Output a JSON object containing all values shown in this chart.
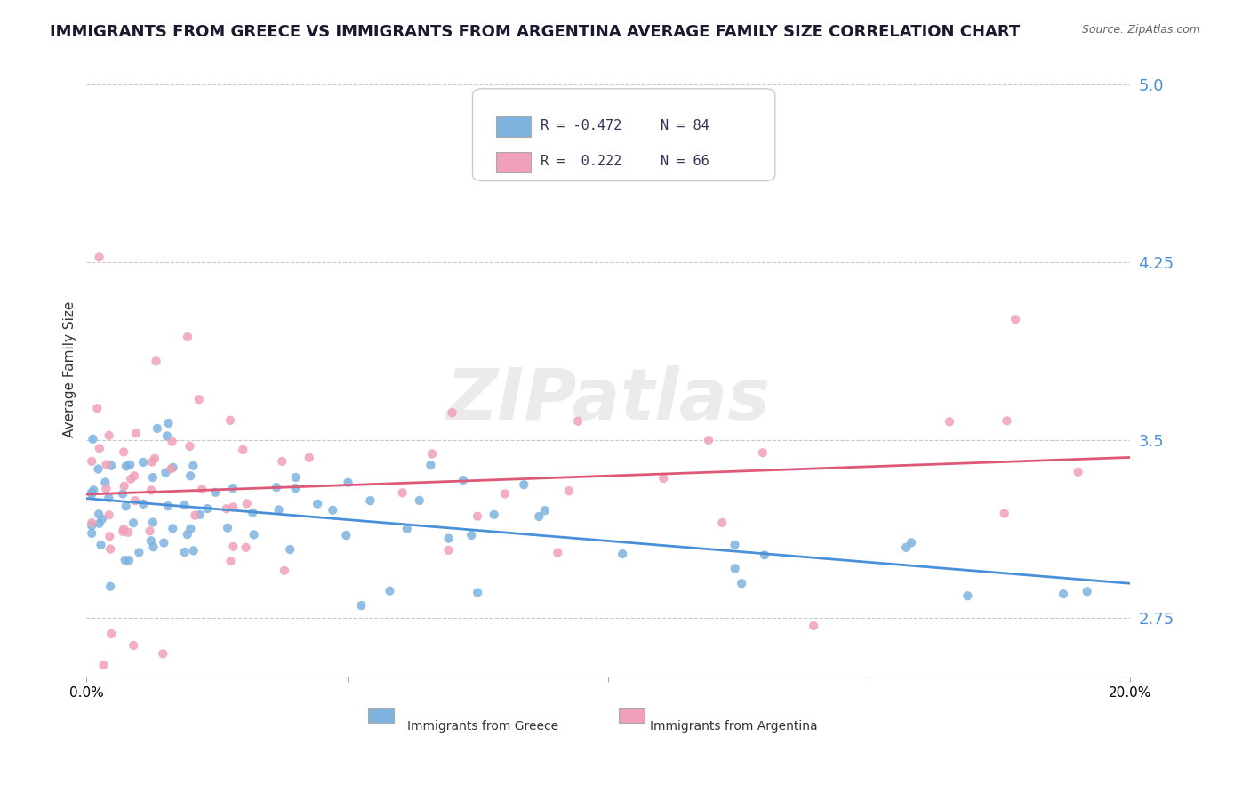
{
  "title": "IMMIGRANTS FROM GREECE VS IMMIGRANTS FROM ARGENTINA AVERAGE FAMILY SIZE CORRELATION CHART",
  "source_text": "Source: ZipAtlas.com",
  "ylabel": "Average Family Size",
  "watermark": "ZIPatlas",
  "xmin": 0.0,
  "xmax": 0.2,
  "ymin": 2.5,
  "ymax": 5.1,
  "yticks": [
    2.75,
    3.5,
    4.25,
    5.0
  ],
  "xticks": [
    0.0,
    0.05,
    0.1,
    0.15,
    0.2
  ],
  "xticklabels": [
    "0.0%",
    "",
    "",
    "",
    "20.0%"
  ],
  "series": [
    {
      "label": "Immigrants from Greece",
      "color": "#7eb3e0",
      "R": -0.472,
      "N": 84,
      "trend_color": "#4a90d9"
    },
    {
      "label": "Immigrants from Argentina",
      "color": "#f0a0b8",
      "R": 0.222,
      "N": 66,
      "trend_color": "#e05878"
    }
  ],
  "background_color": "#ffffff",
  "grid_color": "#c8c8d0",
  "title_fontsize": 13,
  "axis_label_fontsize": 11,
  "tick_fontsize": 11,
  "tick_color": "#4a90d9"
}
